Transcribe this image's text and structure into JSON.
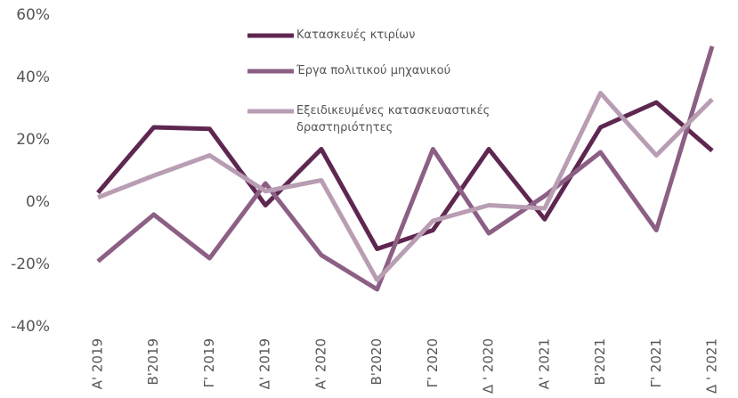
{
  "chart_data": {
    "type": "line",
    "categories": [
      "Α' 2019",
      "Β'2019",
      "Γ' 2019",
      "Δ' 2019",
      "Α' 2020",
      "Β'2020",
      "Γ' 2020",
      "Δ ' 2020",
      "Α' 2021",
      "Β'2021",
      "Γ' 2021",
      "Δ ' 2021"
    ],
    "series": [
      {
        "name": "Κατασκευές κτιρίων",
        "color": "#5e2750",
        "values": [
          3,
          24,
          23.5,
          -1,
          17,
          -15,
          -9,
          17,
          -5.5,
          24,
          32,
          16.5
        ]
      },
      {
        "name": "Έργα πολιτικού μηχανικού",
        "color": "#8c5f84",
        "values": [
          -19,
          -4,
          -18,
          6,
          -17,
          -28,
          17,
          -10,
          2,
          16,
          -9,
          50
        ]
      },
      {
        "name": "Εξειδικευμένες κατασκευαστικές δραστηριότητες",
        "color": "#b89db3",
        "values": [
          1.5,
          8.5,
          15,
          3.5,
          7,
          -25,
          -6,
          -1,
          -2,
          35,
          15,
          33
        ]
      }
    ],
    "ylim": [
      -40,
      60
    ],
    "yticks": [
      {
        "value": -40,
        "label": "-40%"
      },
      {
        "value": -20,
        "label": "-20%"
      },
      {
        "value": 0,
        "label": "0%"
      },
      {
        "value": 20,
        "label": "20%"
      },
      {
        "value": 40,
        "label": "40%"
      },
      {
        "value": 60,
        "label": "60%"
      }
    ],
    "grid": false
  }
}
